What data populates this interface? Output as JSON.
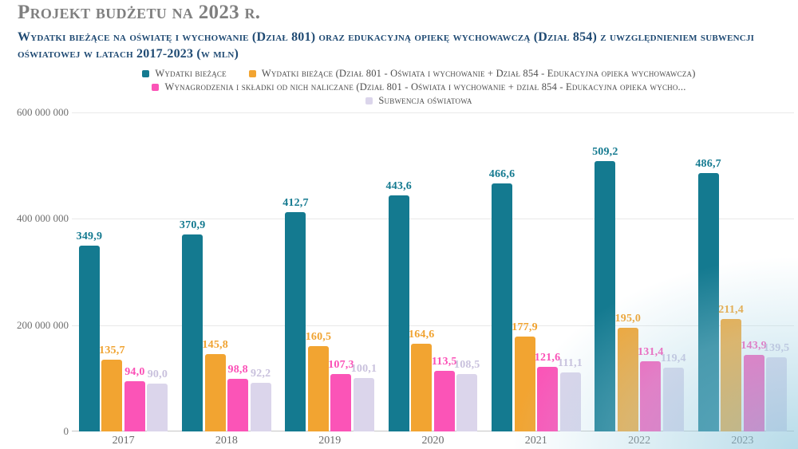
{
  "page": {
    "title": "Projekt budżetu na 2023 r."
  },
  "colors": {
    "title_text": "#7f7f7f",
    "subtitle_text": "#1f4a73",
    "legend_text": "#4d4d4d",
    "axis_text": "#6e6e6e",
    "gridline": "#e9e9e9",
    "baseline": "#c6c6c6",
    "corner_wash": "#8bc5db"
  },
  "chart_data": {
    "type": "bar",
    "title": "Wydatki bieżące na oświatę i wychowanie (Dział 801) oraz edukacyjną opiekę wychowawczą (Dział 854) z uwzględnieniem subwencji oświatowej w latach 2017-2023 (w mln)",
    "categories": [
      "2017",
      "2018",
      "2019",
      "2020",
      "2021",
      "2022",
      "2023"
    ],
    "series": [
      {
        "key": "wydatki-biezace",
        "name": "Wydatki bieżące",
        "color": "#147a90",
        "label_color": "#147a90",
        "values_mln": [
          349.9,
          370.9,
          412.7,
          443.6,
          466.6,
          509.2,
          486.7
        ]
      },
      {
        "key": "wydatki-biezace-801-854",
        "name": "Wydatki bieżące (Dział 801 - Oświata i wychowanie + Dział 854 - Edukacyjna opieka wychowawcza)",
        "color": "#f2a431",
        "label_color": "#f0a331",
        "values_mln": [
          135.7,
          145.8,
          160.5,
          164.6,
          177.9,
          195.0,
          211.4
        ]
      },
      {
        "key": "wynagrodzenia-i-skladki",
        "name": "Wynagrodzenia i składki od nich naliczane (Dział 801 - Oświata i wychowanie + dział 854 - Edukacyjna opieka wycho...",
        "color": "#fb54b7",
        "label_color": "#fb4fb6",
        "values_mln": [
          94.0,
          98.8,
          107.3,
          113.5,
          121.6,
          131.4,
          143.9
        ]
      },
      {
        "key": "subwencja-oswiatowa",
        "name": "Subwencja oświatowa",
        "color": "#dbd5eb",
        "label_color": "#c9c1dd",
        "values_mln": [
          90.0,
          92.2,
          100.1,
          108.5,
          111.1,
          119.4,
          139.5
        ]
      }
    ],
    "ylim_mln": [
      0,
      600
    ],
    "yticks": [
      {
        "label": "600 000 000",
        "value_mln": 600
      },
      {
        "label": "400 000 000",
        "value_mln": 400
      },
      {
        "label": "200 000 000",
        "value_mln": 200
      },
      {
        "label": "0",
        "value_mln": 0
      }
    ],
    "xlabel": "",
    "ylabel": "",
    "grid": true,
    "legend_position": "top",
    "decimal_separator": ","
  }
}
